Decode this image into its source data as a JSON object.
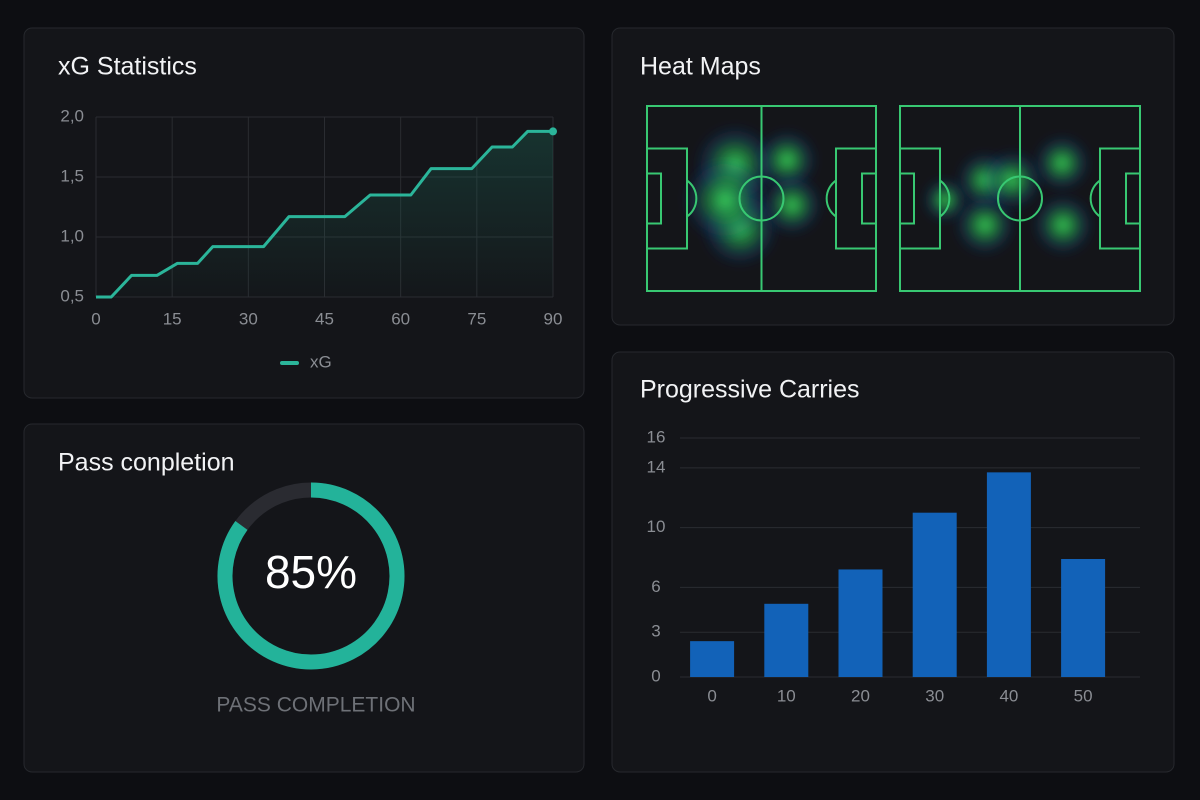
{
  "chart_data": [
    {
      "type": "line",
      "title": "xG Statistics",
      "x": [
        0,
        3,
        7,
        12,
        16,
        20,
        23,
        33,
        38,
        49,
        54,
        62,
        66,
        74,
        78,
        82,
        85,
        90
      ],
      "series": [
        {
          "name": "xG",
          "color": "#2bb59a",
          "values": [
            0.5,
            0.5,
            0.68,
            0.68,
            0.78,
            0.78,
            0.92,
            0.92,
            1.17,
            1.17,
            1.35,
            1.35,
            1.57,
            1.57,
            1.75,
            1.75,
            1.88,
            1.88
          ]
        }
      ],
      "xlim": [
        0,
        90
      ],
      "xticks": [
        0,
        15,
        30,
        45,
        60,
        75,
        90
      ],
      "ylim": [
        0.5,
        2.0
      ],
      "yticks": [
        {
          "value": 0.5,
          "label": "0,5"
        },
        {
          "value": 1.0,
          "label": "1,0"
        },
        {
          "value": 1.5,
          "label": "1,5"
        },
        {
          "value": 2.0,
          "label": "2,0"
        }
      ],
      "grid": true
    },
    {
      "type": "heatmap",
      "title": "Heat Maps"
    },
    {
      "type": "donut",
      "title": "Pass conpletion",
      "values": [
        85
      ],
      "value_labels": [
        "85%"
      ],
      "ylim": [
        0,
        100
      ],
      "label": "PASS COMPLETION",
      "color": "#23b39a"
    },
    {
      "type": "bar",
      "title": "Progressive Carries",
      "categories": [
        "0",
        "10",
        "20",
        "30",
        "40",
        "50"
      ],
      "values": [
        2.4,
        4.9,
        7.2,
        11.0,
        13.7,
        7.9
      ],
      "color": "#1262b8",
      "ylim": [
        0,
        16
      ],
      "yticks": [
        0,
        3,
        6,
        10,
        14,
        16
      ],
      "grid": true
    }
  ]
}
